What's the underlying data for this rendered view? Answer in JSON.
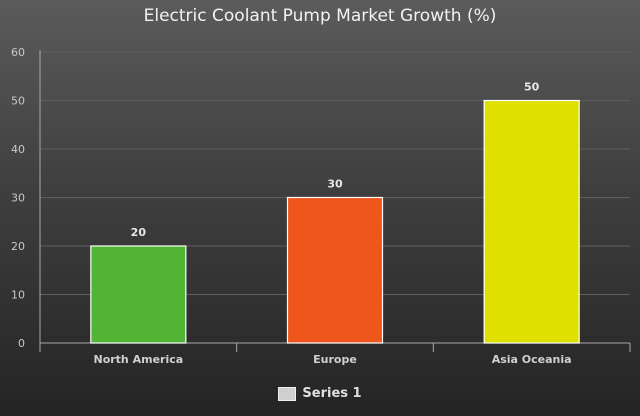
{
  "chart_data": {
    "type": "bar",
    "title": "Electric Coolant Pump Market Growth (%)",
    "categories": [
      "North America",
      "Europe",
      "Asia Oceania"
    ],
    "series": [
      {
        "name": "Series 1",
        "values": [
          20,
          30,
          50
        ]
      }
    ],
    "data_labels": [
      "20",
      "30",
      "50"
    ],
    "bar_colors": [
      "#52b435",
      "#ee561c",
      "#dfe000"
    ],
    "ylim": [
      0,
      60
    ],
    "yticks": [
      0,
      10,
      20,
      30,
      40,
      50,
      60
    ],
    "xlabel": "",
    "ylabel": "",
    "grid": true,
    "legend": {
      "position": "bottom-center",
      "entries": [
        "Series 1"
      ]
    }
  }
}
